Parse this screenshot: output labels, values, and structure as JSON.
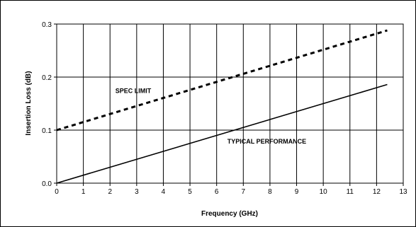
{
  "chart_data": {
    "type": "line",
    "title": "",
    "xlabel": "Frequency (GHz)",
    "ylabel": "Insertion Loss (dB)",
    "xlim": [
      0,
      13
    ],
    "ylim": [
      0.0,
      0.3
    ],
    "x_ticks": [
      "0",
      "1",
      "2",
      "3",
      "4",
      "5",
      "6",
      "7",
      "8",
      "9",
      "10",
      "11",
      "12",
      "13"
    ],
    "y_ticks": [
      "0.0",
      "0.1",
      "0.2",
      "0.3"
    ],
    "grid": true,
    "series": [
      {
        "name": "SPEC LIMIT",
        "style": "dashed",
        "x": [
          0,
          12.4
        ],
        "y": [
          0.1,
          0.288
        ]
      },
      {
        "name": "TYPICAL PERFORMANCE",
        "style": "solid",
        "x": [
          0,
          12.4
        ],
        "y": [
          0.0,
          0.186
        ]
      }
    ],
    "annotations": [
      {
        "text": "SPEC LIMIT",
        "x": 2.2,
        "y": 0.17
      },
      {
        "text": "TYPICAL PERFORMANCE",
        "x": 6.4,
        "y": 0.075
      }
    ]
  },
  "colors": {
    "line": "#000000",
    "grid": "#000000",
    "frame": "#000000"
  }
}
